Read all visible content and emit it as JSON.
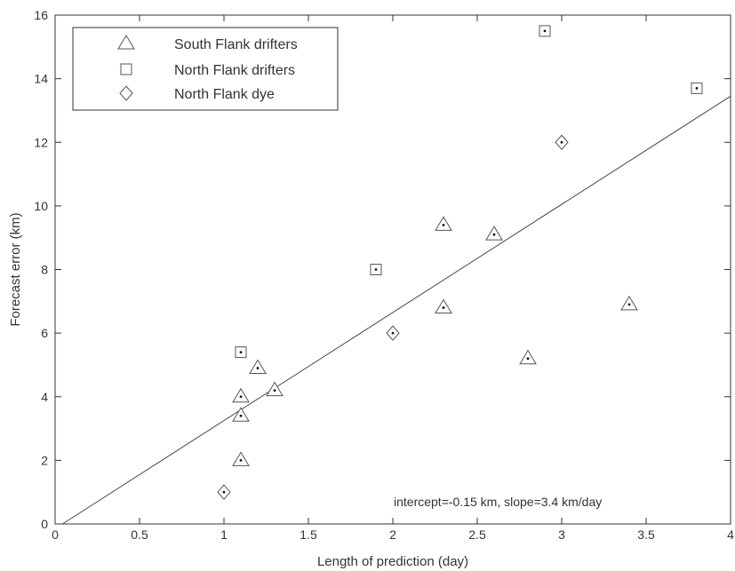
{
  "chart_data": {
    "type": "scatter",
    "title": "",
    "xlabel": "Length of prediction  (day)",
    "ylabel": "Forecast error  (km)",
    "xlim": [
      0,
      4
    ],
    "ylim": [
      0,
      16
    ],
    "xticks": [
      0,
      0.5,
      1,
      1.5,
      2,
      2.5,
      3,
      3.5,
      4
    ],
    "yticks": [
      0,
      2,
      4,
      6,
      8,
      10,
      12,
      14,
      16
    ],
    "xtick_labels": [
      "0",
      "0.5",
      "1",
      "1.5",
      "2",
      "2.5",
      "3",
      "3.5",
      "4"
    ],
    "ytick_labels": [
      "0",
      "2",
      "4",
      "6",
      "8",
      "10",
      "12",
      "14",
      "16"
    ],
    "grid": false,
    "legend_position": "top-left",
    "series": [
      {
        "name": "South Flank drifters",
        "marker": "triangle",
        "points": [
          {
            "x": 1.1,
            "y": 2.0
          },
          {
            "x": 1.1,
            "y": 3.4
          },
          {
            "x": 1.1,
            "y": 4.0
          },
          {
            "x": 1.2,
            "y": 4.9
          },
          {
            "x": 1.3,
            "y": 4.2
          },
          {
            "x": 2.3,
            "y": 6.8
          },
          {
            "x": 2.3,
            "y": 9.4
          },
          {
            "x": 2.6,
            "y": 9.1
          },
          {
            "x": 2.8,
            "y": 5.2
          },
          {
            "x": 3.4,
            "y": 6.9
          }
        ]
      },
      {
        "name": "North Flank drifters",
        "marker": "square",
        "points": [
          {
            "x": 1.1,
            "y": 5.4
          },
          {
            "x": 1.9,
            "y": 8.0
          },
          {
            "x": 2.9,
            "y": 15.5
          },
          {
            "x": 3.8,
            "y": 13.7
          }
        ]
      },
      {
        "name": "North Flank dye",
        "marker": "diamond",
        "points": [
          {
            "x": 1.0,
            "y": 1.0
          },
          {
            "x": 2.0,
            "y": 6.0
          },
          {
            "x": 3.0,
            "y": 12.0
          }
        ]
      }
    ],
    "fit_line": {
      "intercept": -0.15,
      "slope": 3.4
    },
    "annotation": "intercept=-0.15 km, slope=3.4 km/day",
    "colors": {
      "marker": "#555555",
      "line": "#444444",
      "axis": "#333333",
      "dot": "#111111"
    }
  }
}
